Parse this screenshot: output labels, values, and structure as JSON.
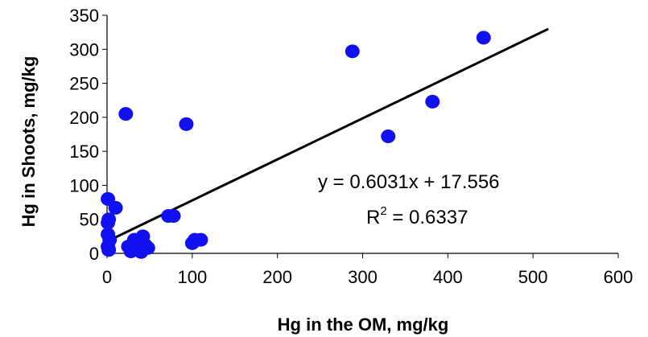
{
  "chart_data": {
    "type": "scatter",
    "xlabel": "Hg in the OM, mg/kg",
    "ylabel": "Hg in Shoots, mg/kg",
    "xlim": [
      0,
      600
    ],
    "ylim": [
      0,
      350
    ],
    "xticks": [
      0,
      100,
      200,
      300,
      400,
      500,
      600
    ],
    "yticks": [
      0,
      50,
      100,
      150,
      200,
      250,
      300,
      350
    ],
    "grid": false,
    "legend": "none",
    "marker_color": "#1010f0",
    "trendline": {
      "slope": 0.6031,
      "intercept": 17.556,
      "x_range": [
        0,
        518
      ],
      "equation_label": "y = 0.6031x + 17.556",
      "r2_prefix": "R",
      "r2_exponent": "2",
      "r2_value": " = 0.6337"
    },
    "points": [
      {
        "x": 1,
        "y": 80
      },
      {
        "x": 2,
        "y": 50
      },
      {
        "x": 1,
        "y": 45
      },
      {
        "x": 10,
        "y": 67
      },
      {
        "x": 1,
        "y": 28
      },
      {
        "x": 3,
        "y": 20
      },
      {
        "x": 1,
        "y": 10
      },
      {
        "x": 2,
        "y": 5
      },
      {
        "x": 22,
        "y": 205
      },
      {
        "x": 25,
        "y": 10
      },
      {
        "x": 28,
        "y": 3
      },
      {
        "x": 32,
        "y": 20
      },
      {
        "x": 36,
        "y": 12
      },
      {
        "x": 40,
        "y": 2
      },
      {
        "x": 42,
        "y": 25
      },
      {
        "x": 45,
        "y": 12
      },
      {
        "x": 48,
        "y": 8
      },
      {
        "x": 72,
        "y": 55
      },
      {
        "x": 78,
        "y": 55
      },
      {
        "x": 93,
        "y": 190
      },
      {
        "x": 100,
        "y": 15
      },
      {
        "x": 103,
        "y": 20
      },
      {
        "x": 110,
        "y": 20
      },
      {
        "x": 288,
        "y": 297
      },
      {
        "x": 330,
        "y": 172
      },
      {
        "x": 382,
        "y": 223
      },
      {
        "x": 442,
        "y": 317
      }
    ]
  }
}
